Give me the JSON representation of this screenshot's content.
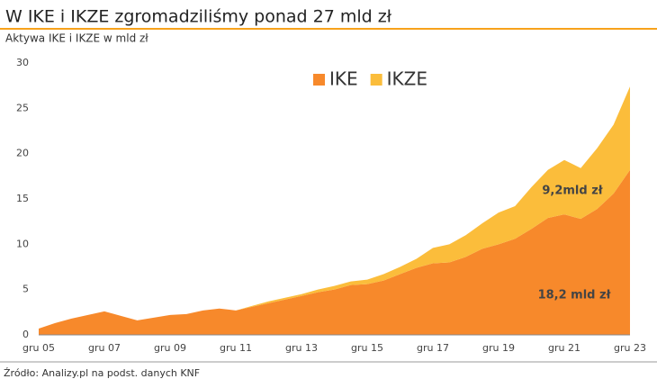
{
  "chart_data": {
    "type": "stacked_area",
    "title": "W IKE i IKZE zgromadziliśmy ponad 27 mld zł",
    "subtitle": "Aktywa IKE i IKZE w mld zł",
    "source": "Źródło: Analizy.pl na podst. danych KNF",
    "categories": [
      "gru 05",
      null,
      null,
      null,
      "gru 07",
      null,
      null,
      null,
      "gru 09",
      null,
      null,
      null,
      "gru 11",
      null,
      null,
      null,
      "gru 13",
      null,
      null,
      null,
      "gru 15",
      null,
      null,
      null,
      "gru 17",
      null,
      null,
      null,
      "gru 19",
      null,
      null,
      null,
      "gru 21",
      null,
      null,
      null,
      "gru 23"
    ],
    "series": [
      {
        "name": "IKE",
        "color": "#f7892b",
        "values": [
          0.7,
          1.3,
          1.8,
          2.2,
          2.6,
          2.1,
          1.6,
          1.9,
          2.2,
          2.3,
          2.7,
          2.9,
          2.7,
          3.1,
          3.5,
          3.9,
          4.3,
          4.7,
          5.0,
          5.5,
          5.6,
          6.0,
          6.7,
          7.4,
          7.9,
          8.0,
          8.6,
          9.5,
          10.0,
          10.6,
          11.7,
          12.9,
          13.3,
          12.8,
          13.9,
          15.6,
          18.2
        ]
      },
      {
        "name": "IKZE",
        "color": "#fbbd3b",
        "values": [
          0,
          0,
          0,
          0,
          0,
          0,
          0,
          0,
          0,
          0,
          0,
          0,
          0,
          0.1,
          0.2,
          0.2,
          0.2,
          0.3,
          0.4,
          0.4,
          0.5,
          0.7,
          0.8,
          1.0,
          1.7,
          2.0,
          2.4,
          2.8,
          3.5,
          3.6,
          4.6,
          5.3,
          6.0,
          5.6,
          6.7,
          7.6,
          9.2
        ]
      }
    ],
    "annotations": [
      "9,2mld zł",
      "18,2 mld zł"
    ],
    "ylim": [
      0,
      30
    ],
    "yticks": [
      0,
      5,
      10,
      15,
      20,
      25,
      30
    ],
    "grid": false,
    "legend": "top"
  }
}
